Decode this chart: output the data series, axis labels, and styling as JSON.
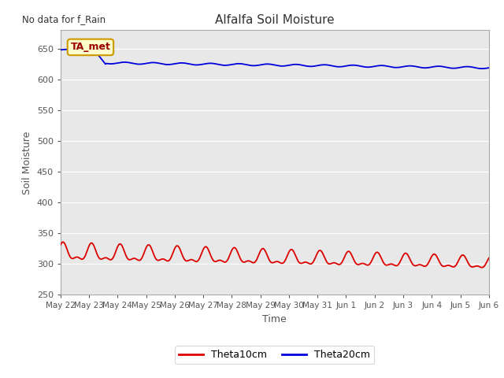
{
  "title": "Alfalfa Soil Moisture",
  "xlabel": "Time",
  "ylabel": "Soil Moisture",
  "top_label": "No data for f_Rain",
  "annotation_label": "TA_met",
  "ylim": [
    250,
    680
  ],
  "yticks": [
    250,
    300,
    350,
    400,
    450,
    500,
    550,
    600,
    650
  ],
  "fig_facecolor": "#ffffff",
  "axes_facecolor": "#e8e8e8",
  "line_blue_color": "#0000dd",
  "line_red_color": "#dd0000",
  "legend_entries": [
    "Theta10cm",
    "Theta20cm"
  ],
  "annotation_facecolor": "#ffffcc",
  "annotation_edgecolor": "#cc9900",
  "annotation_textcolor": "#990000",
  "day_labels": [
    "May 22",
    "May 23",
    "May 24",
    "May 25",
    "May 26",
    "May 27",
    "May 28",
    "May 29",
    "May 30",
    "May 31",
    "Jun 1",
    "Jun 2",
    "Jun 3",
    "Jun 4",
    "Jun 5",
    "Jun 6"
  ],
  "grid_color": "#ffffff",
  "tick_color": "#555555",
  "label_color": "#555555"
}
